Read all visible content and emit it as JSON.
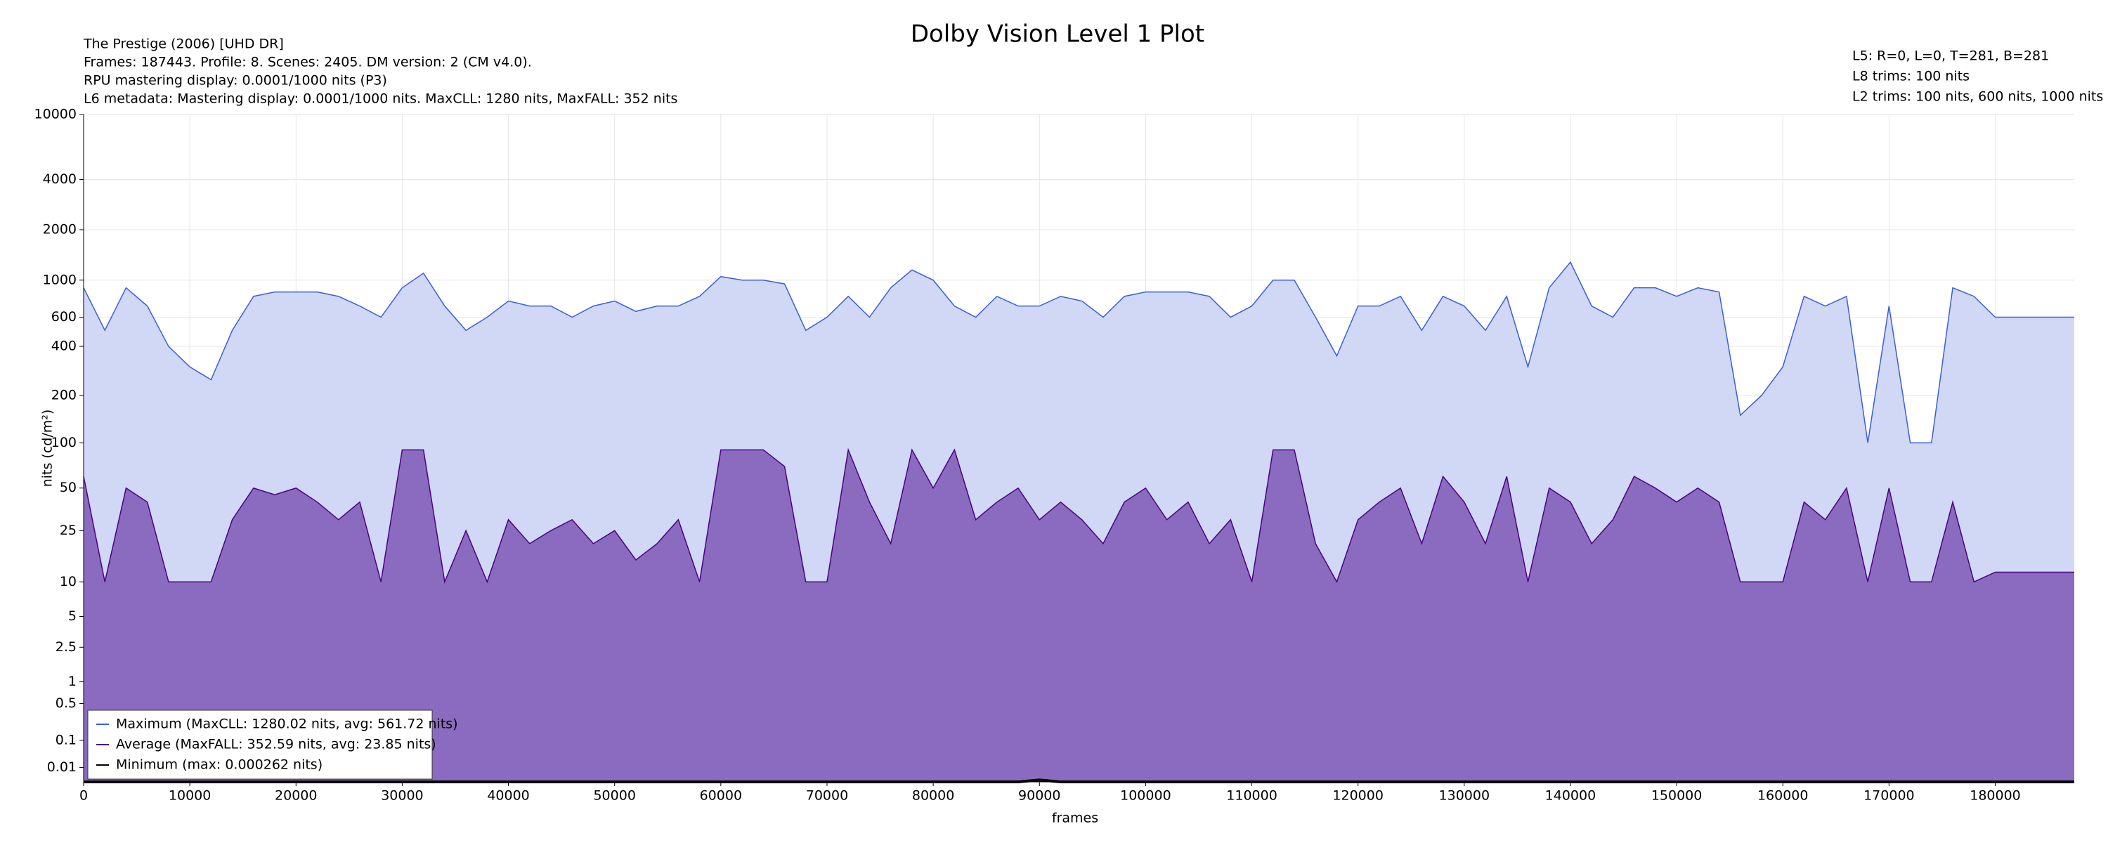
{
  "chart_data": {
    "type": "area",
    "title": "Dolby Vision Level 1 Plot",
    "info": [
      "The Prestige (2006) [UHD DR]",
      "Frames: 187443. Profile: 8. Scenes: 2405. DM version: 2 (CM v4.0).",
      "RPU mastering display: 0.0001/1000 nits  (P3)",
      "L6 metadata: Mastering display: 0.0001/1000 nits. MaxCLL: 1280 nits, MaxFALL: 352 nits"
    ],
    "info_right": [
      "L5: R=0, L=0, T=281, B=281",
      "L8 trims: 100 nits",
      "L2 trims: 100 nits, 600 nits, 1000 nits"
    ],
    "xlabel": "frames",
    "ylabel": "nits (cd/m²)",
    "yscale": "pq",
    "grid": true,
    "legend": "lower left",
    "xlim": [
      0,
      187443
    ],
    "ylim": [
      0,
      10000
    ],
    "xticks": [
      0,
      10000,
      20000,
      30000,
      40000,
      50000,
      60000,
      70000,
      80000,
      90000,
      100000,
      110000,
      120000,
      130000,
      140000,
      150000,
      160000,
      170000,
      180000
    ],
    "yticks": [
      0.01,
      0.1,
      0.5,
      1,
      2.5,
      5,
      10,
      25,
      50,
      100,
      200,
      400,
      600,
      1000,
      2000,
      4000,
      10000
    ],
    "x": [
      0,
      2000,
      4000,
      6000,
      8000,
      10000,
      12000,
      14000,
      16000,
      18000,
      20000,
      22000,
      24000,
      26000,
      28000,
      30000,
      32000,
      34000,
      36000,
      38000,
      40000,
      42000,
      44000,
      46000,
      48000,
      50000,
      52000,
      54000,
      56000,
      58000,
      60000,
      62000,
      64000,
      66000,
      68000,
      70000,
      72000,
      74000,
      76000,
      78000,
      80000,
      82000,
      84000,
      86000,
      88000,
      90000,
      92000,
      94000,
      96000,
      98000,
      100000,
      102000,
      104000,
      106000,
      108000,
      110000,
      112000,
      114000,
      116000,
      118000,
      120000,
      122000,
      124000,
      126000,
      128000,
      130000,
      132000,
      134000,
      136000,
      138000,
      140000,
      142000,
      144000,
      146000,
      148000,
      150000,
      152000,
      154000,
      156000,
      158000,
      160000,
      162000,
      164000,
      166000,
      168000,
      170000,
      172000,
      174000,
      176000,
      178000,
      180000,
      182000,
      184000,
      186000,
      187443
    ],
    "series": [
      {
        "name": "Maximum (MaxCLL: 1280.02 nits, avg: 561.72 nits)",
        "color": "#3a5fd9",
        "fill": "#d0d8f5",
        "values": [
          900,
          500,
          900,
          700,
          400,
          300,
          250,
          500,
          800,
          850,
          850,
          850,
          800,
          700,
          600,
          900,
          1100,
          700,
          500,
          600,
          750,
          700,
          700,
          600,
          700,
          750,
          650,
          700,
          700,
          800,
          1050,
          1000,
          1000,
          950,
          500,
          600,
          800,
          600,
          900,
          1150,
          1000,
          700,
          600,
          800,
          700,
          700,
          800,
          750,
          600,
          800,
          850,
          850,
          850,
          800,
          600,
          700,
          1000,
          1000,
          600,
          350,
          700,
          700,
          800,
          500,
          800,
          700,
          500,
          800,
          300,
          900,
          1280,
          700,
          600,
          900,
          900,
          800,
          900,
          850,
          150,
          200,
          300,
          800,
          700,
          800,
          100,
          700,
          100,
          100,
          900,
          800,
          600,
          600,
          600,
          600,
          600
        ]
      },
      {
        "name": "Average (MaxFALL: 352.59 nits, avg: 23.85 nits)",
        "color": "#4b0082",
        "fill": "#8b6bbf",
        "values": [
          60,
          10,
          50,
          40,
          10,
          10,
          10,
          30,
          50,
          45,
          50,
          40,
          30,
          40,
          10,
          90,
          90,
          10,
          25,
          10,
          30,
          20,
          25,
          30,
          20,
          25,
          15,
          20,
          30,
          10,
          90,
          90,
          90,
          70,
          10,
          10,
          90,
          40,
          20,
          90,
          50,
          90,
          30,
          40,
          50,
          30,
          40,
          30,
          20,
          40,
          50,
          30,
          40,
          20,
          30,
          10,
          90,
          90,
          20,
          10,
          30,
          40,
          50,
          20,
          60,
          40,
          20,
          60,
          10,
          50,
          40,
          20,
          30,
          60,
          50,
          40,
          50,
          40,
          10,
          10,
          10,
          40,
          30,
          50,
          10,
          50,
          10,
          10,
          40,
          10,
          12,
          12,
          12,
          12,
          12
        ]
      },
      {
        "name": "Minimum (max: 0.000262 nits)",
        "color": "#000000",
        "values": [
          0,
          0,
          0,
          0,
          0,
          0,
          0,
          0,
          0,
          0,
          0,
          0,
          0,
          0,
          0,
          0,
          0,
          0,
          0,
          0,
          0,
          0,
          0,
          0,
          0,
          0,
          0,
          0,
          0,
          0,
          0,
          0,
          0,
          0,
          0,
          0,
          0,
          0,
          0,
          0,
          0,
          0,
          0,
          0,
          0,
          0.000262,
          0,
          0,
          0,
          0,
          0,
          0,
          0,
          0,
          0,
          0,
          0,
          0,
          0,
          0,
          0,
          0,
          0,
          0,
          0,
          0,
          0,
          0,
          0,
          0,
          0,
          0,
          0,
          0,
          0,
          0,
          0,
          0,
          0,
          0,
          0,
          0,
          0,
          0,
          0,
          0,
          0,
          0,
          0,
          0,
          0,
          0,
          0,
          0,
          0
        ]
      }
    ]
  }
}
